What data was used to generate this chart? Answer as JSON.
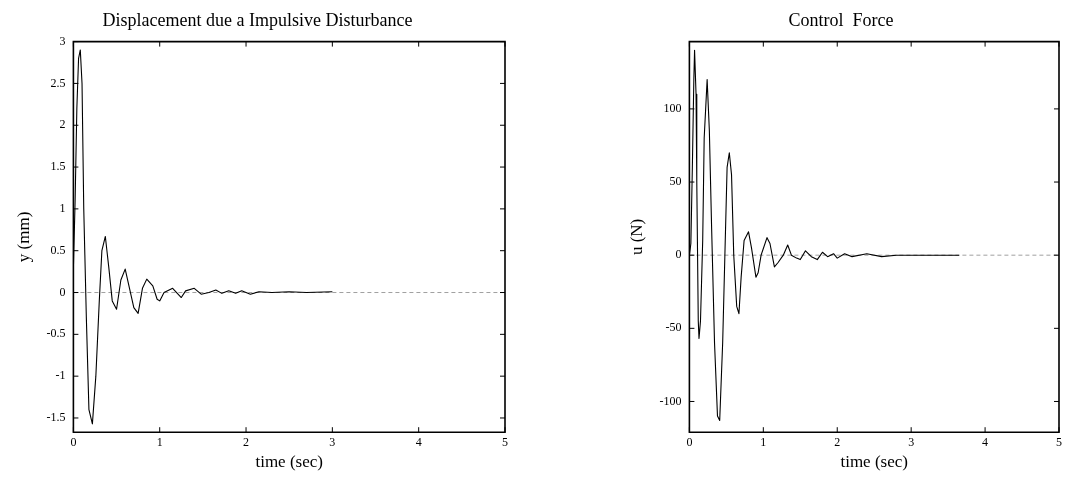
{
  "chart_data": [
    {
      "type": "line",
      "title": "Displacement due a Impulsive Disturbance",
      "xlabel": "time (sec)",
      "ylabel": "y (mm)",
      "xlim": [
        0,
        5
      ],
      "xticks": [
        0,
        1,
        2,
        3,
        4,
        5
      ],
      "ylim": [
        -1.67,
        3
      ],
      "yticks": [
        -1.5,
        -1,
        -0.5,
        0,
        0.5,
        1,
        1.5,
        2,
        2.5,
        3
      ],
      "grid": false,
      "legend": false,
      "marker": "none",
      "line_style": "solid",
      "ref_lines": [
        {
          "axis": "y",
          "value": 0,
          "color": "#a0a0a0",
          "line_style": "dashed"
        }
      ],
      "series": [
        {
          "color": "#000000",
          "x": [
            0,
            0.02,
            0.04,
            0.06,
            0.08,
            0.1,
            0.12,
            0.15,
            0.18,
            0.22,
            0.26,
            0.3,
            0.33,
            0.37,
            0.41,
            0.45,
            0.5,
            0.55,
            0.6,
            0.65,
            0.7,
            0.75,
            0.8,
            0.85,
            0.92,
            0.97,
            1.0,
            1.05,
            1.15,
            1.25,
            1.3,
            1.4,
            1.48,
            1.57,
            1.65,
            1.72,
            1.8,
            1.88,
            1.95,
            2.05,
            2.15,
            2.3,
            2.5,
            2.7,
            3.0
          ],
          "values": [
            0.3,
            1.1,
            2.2,
            2.8,
            2.9,
            2.5,
            1.0,
            -0.3,
            -1.4,
            -1.57,
            -1.0,
            -0.1,
            0.5,
            0.67,
            0.3,
            -0.1,
            -0.2,
            0.15,
            0.28,
            0.05,
            -0.18,
            -0.25,
            0.05,
            0.16,
            0.08,
            -0.08,
            -0.1,
            0.0,
            0.05,
            -0.06,
            0.02,
            0.05,
            -0.02,
            0.0,
            0.03,
            -0.01,
            0.02,
            -0.01,
            0.02,
            -0.02,
            0.01,
            0.0,
            0.01,
            0.0,
            0.01
          ]
        }
      ]
    },
    {
      "type": "line",
      "title": "Control  Force",
      "xlabel": "time (sec)",
      "ylabel": "u (N)",
      "xlim": [
        0,
        5
      ],
      "xticks": [
        0,
        1,
        2,
        3,
        4,
        5
      ],
      "ylim": [
        -121,
        146
      ],
      "yticks": [
        -100,
        -50,
        0,
        50,
        100
      ],
      "grid": false,
      "legend": false,
      "marker": "none",
      "line_style": "solid",
      "ref_lines": [
        {
          "axis": "y",
          "value": 0,
          "color": "#a0a0a0",
          "line_style": "dashed"
        }
      ],
      "series": [
        {
          "color": "#000000",
          "x": [
            0,
            0.02,
            0.04,
            0.06,
            0.07,
            0.09,
            0.1,
            0.12,
            0.13,
            0.15,
            0.18,
            0.2,
            0.24,
            0.27,
            0.3,
            0.34,
            0.38,
            0.41,
            0.45,
            0.48,
            0.51,
            0.54,
            0.57,
            0.6,
            0.64,
            0.67,
            0.7,
            0.74,
            0.8,
            0.84,
            0.9,
            0.93,
            0.97,
            1.05,
            1.09,
            1.15,
            1.2,
            1.27,
            1.33,
            1.38,
            1.45,
            1.5,
            1.57,
            1.65,
            1.73,
            1.8,
            1.87,
            1.95,
            2.0,
            2.1,
            2.2,
            2.4,
            2.6,
            2.8,
            3.0,
            3.3,
            3.65
          ],
          "values": [
            0,
            8,
            60,
            120,
            140,
            110,
            50,
            -45,
            -57,
            -45,
            10,
            80,
            120,
            85,
            20,
            -60,
            -110,
            -113,
            -60,
            0,
            60,
            70,
            55,
            0,
            -35,
            -40,
            -15,
            10,
            16,
            5,
            -15,
            -12,
            0,
            12,
            8,
            -8,
            -5,
            0,
            7,
            0,
            -2,
            -3,
            3,
            -1,
            -3,
            2,
            -1,
            1,
            -2,
            1,
            -1,
            1,
            -1,
            0,
            0,
            0,
            0
          ]
        }
      ]
    }
  ]
}
